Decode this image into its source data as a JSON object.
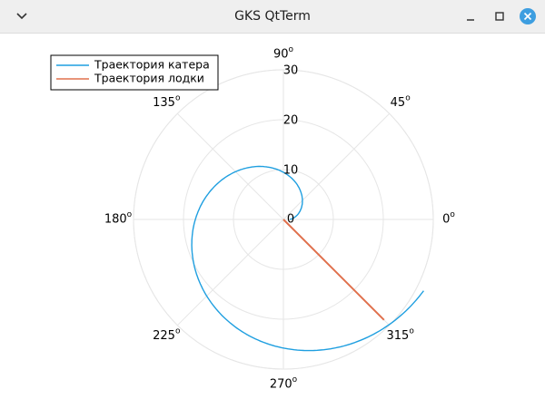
{
  "window": {
    "title": "GKS QtTerm",
    "menu_icon": "chevron-down-icon",
    "minimize_icon": "minimize-icon",
    "maximize_icon": "maximize-icon",
    "close_icon": "close-icon"
  },
  "chart_data": {
    "type": "polar-line",
    "title": "",
    "angle_ticks": [
      {
        "deg": 0,
        "label": "0"
      },
      {
        "deg": 45,
        "label": "45"
      },
      {
        "deg": 90,
        "label": "90"
      },
      {
        "deg": 135,
        "label": "135"
      },
      {
        "deg": 180,
        "label": "180"
      },
      {
        "deg": 225,
        "label": "225"
      },
      {
        "deg": 270,
        "label": "270"
      },
      {
        "deg": 315,
        "label": "315"
      }
    ],
    "angle_unit_marker": "o",
    "radial_ticks": [
      {
        "r": 0,
        "label": "0"
      },
      {
        "r": 10,
        "label": "10"
      },
      {
        "r": 20,
        "label": "20"
      },
      {
        "r": 30,
        "label": "30"
      }
    ],
    "rlim": [
      0,
      30
    ],
    "grid": true,
    "legend_position": "top-left",
    "series": [
      {
        "name": "Траектория катера",
        "color": "#1f9fe0",
        "kind": "spiral",
        "theta_start_deg": 0,
        "theta_end_deg": 333,
        "r_start": 1.3,
        "r_end": 31.5
      },
      {
        "name": "Траектория лодки",
        "color": "#e0704d",
        "kind": "ray",
        "theta_deg": 315,
        "r_start": 0,
        "r_end": 28.5
      }
    ]
  }
}
